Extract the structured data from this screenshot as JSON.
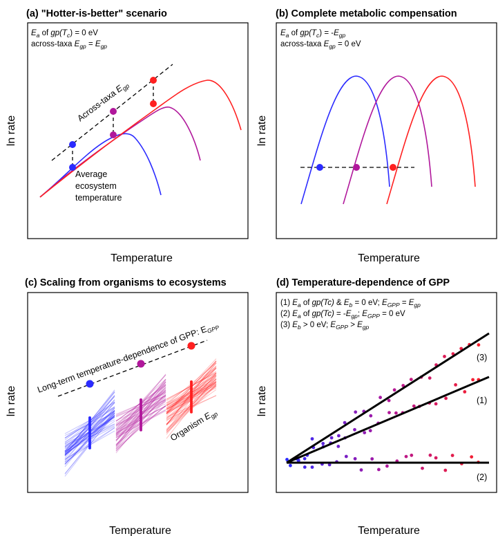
{
  "panels": {
    "a": {
      "title": "(a) \"Hotter-is-better\" scenario",
      "xlabel": "Temperature",
      "ylabel": "ln rate",
      "ann1": {
        "e": "E",
        "a": "a",
        "of": " of ",
        "gp": "gp(T",
        "c": "c",
        "rest": ") = 0 eV"
      },
      "ann2": {
        "pre": "across-taxa ",
        "e1": "E",
        "s1": "gp",
        "eq": " = ",
        "e2": "E",
        "s2": "gp"
      },
      "across_label": {
        "pre": "Across-taxa ",
        "e": "E",
        "s": "gp"
      },
      "avg_label": [
        "Average",
        "ecosystem",
        "temperature"
      ]
    },
    "b": {
      "title": "(b) Complete metabolic compensation",
      "xlabel": "Temperature",
      "ylabel": "ln rate",
      "ann1": {
        "e": "E",
        "a": "a",
        "of": " of ",
        "gp": "gp(T",
        "c": "c",
        "mid": ") = -",
        "e2": "E",
        "s2": "gp"
      },
      "ann2": {
        "pre": "across-taxa ",
        "e": "E",
        "s": "gp",
        "rest": " = 0 eV"
      }
    },
    "c": {
      "title": "(c) Scaling from organisms to ecosystems",
      "xlabel": "Temperature",
      "ylabel": "ln rate",
      "long_label": {
        "pre": "Long-term temperature-dependence of GPP: E",
        "s": "GPP"
      },
      "org_label": {
        "pre": "Organism ",
        "e": "E",
        "s": "gp"
      }
    },
    "d": {
      "title": "(d) Temperature-dependence of GPP",
      "xlabel": "Temperature",
      "ylabel": "ln rate",
      "legend": [
        {
          "num": "(1) ",
          "e": "E",
          "a": "a",
          "t1": " of ",
          "it1": "gp(Tc)",
          "t2": " & ",
          "e2": "E",
          "s2": "b",
          "t3": " = 0 eV; ",
          "e3": "E",
          "s3": "GPP",
          "t4": " = ",
          "e4": "E",
          "s4": "gp"
        },
        {
          "num": "(2) ",
          "e": "E",
          "a": "a",
          "t1": " of ",
          "it1": "gp(Tc)",
          "t2": " = -",
          "e2": "E",
          "s2": "gp",
          "t3": "; ",
          "e3": "E",
          "s3": "GPP",
          "t4": " = 0 eV"
        },
        {
          "num": "(3) ",
          "e": "E",
          "s": "b",
          "t1": " > 0 eV; ",
          "e2": "E",
          "s2": "GPP",
          "t2": " > ",
          "e3": "E",
          "s3": "gp"
        }
      ],
      "line_labels": [
        "(1)",
        "(2)",
        "(3)"
      ]
    }
  },
  "colors": {
    "blue": "#2b2bff",
    "purple": "#b0179b",
    "red": "#ff2020"
  }
}
